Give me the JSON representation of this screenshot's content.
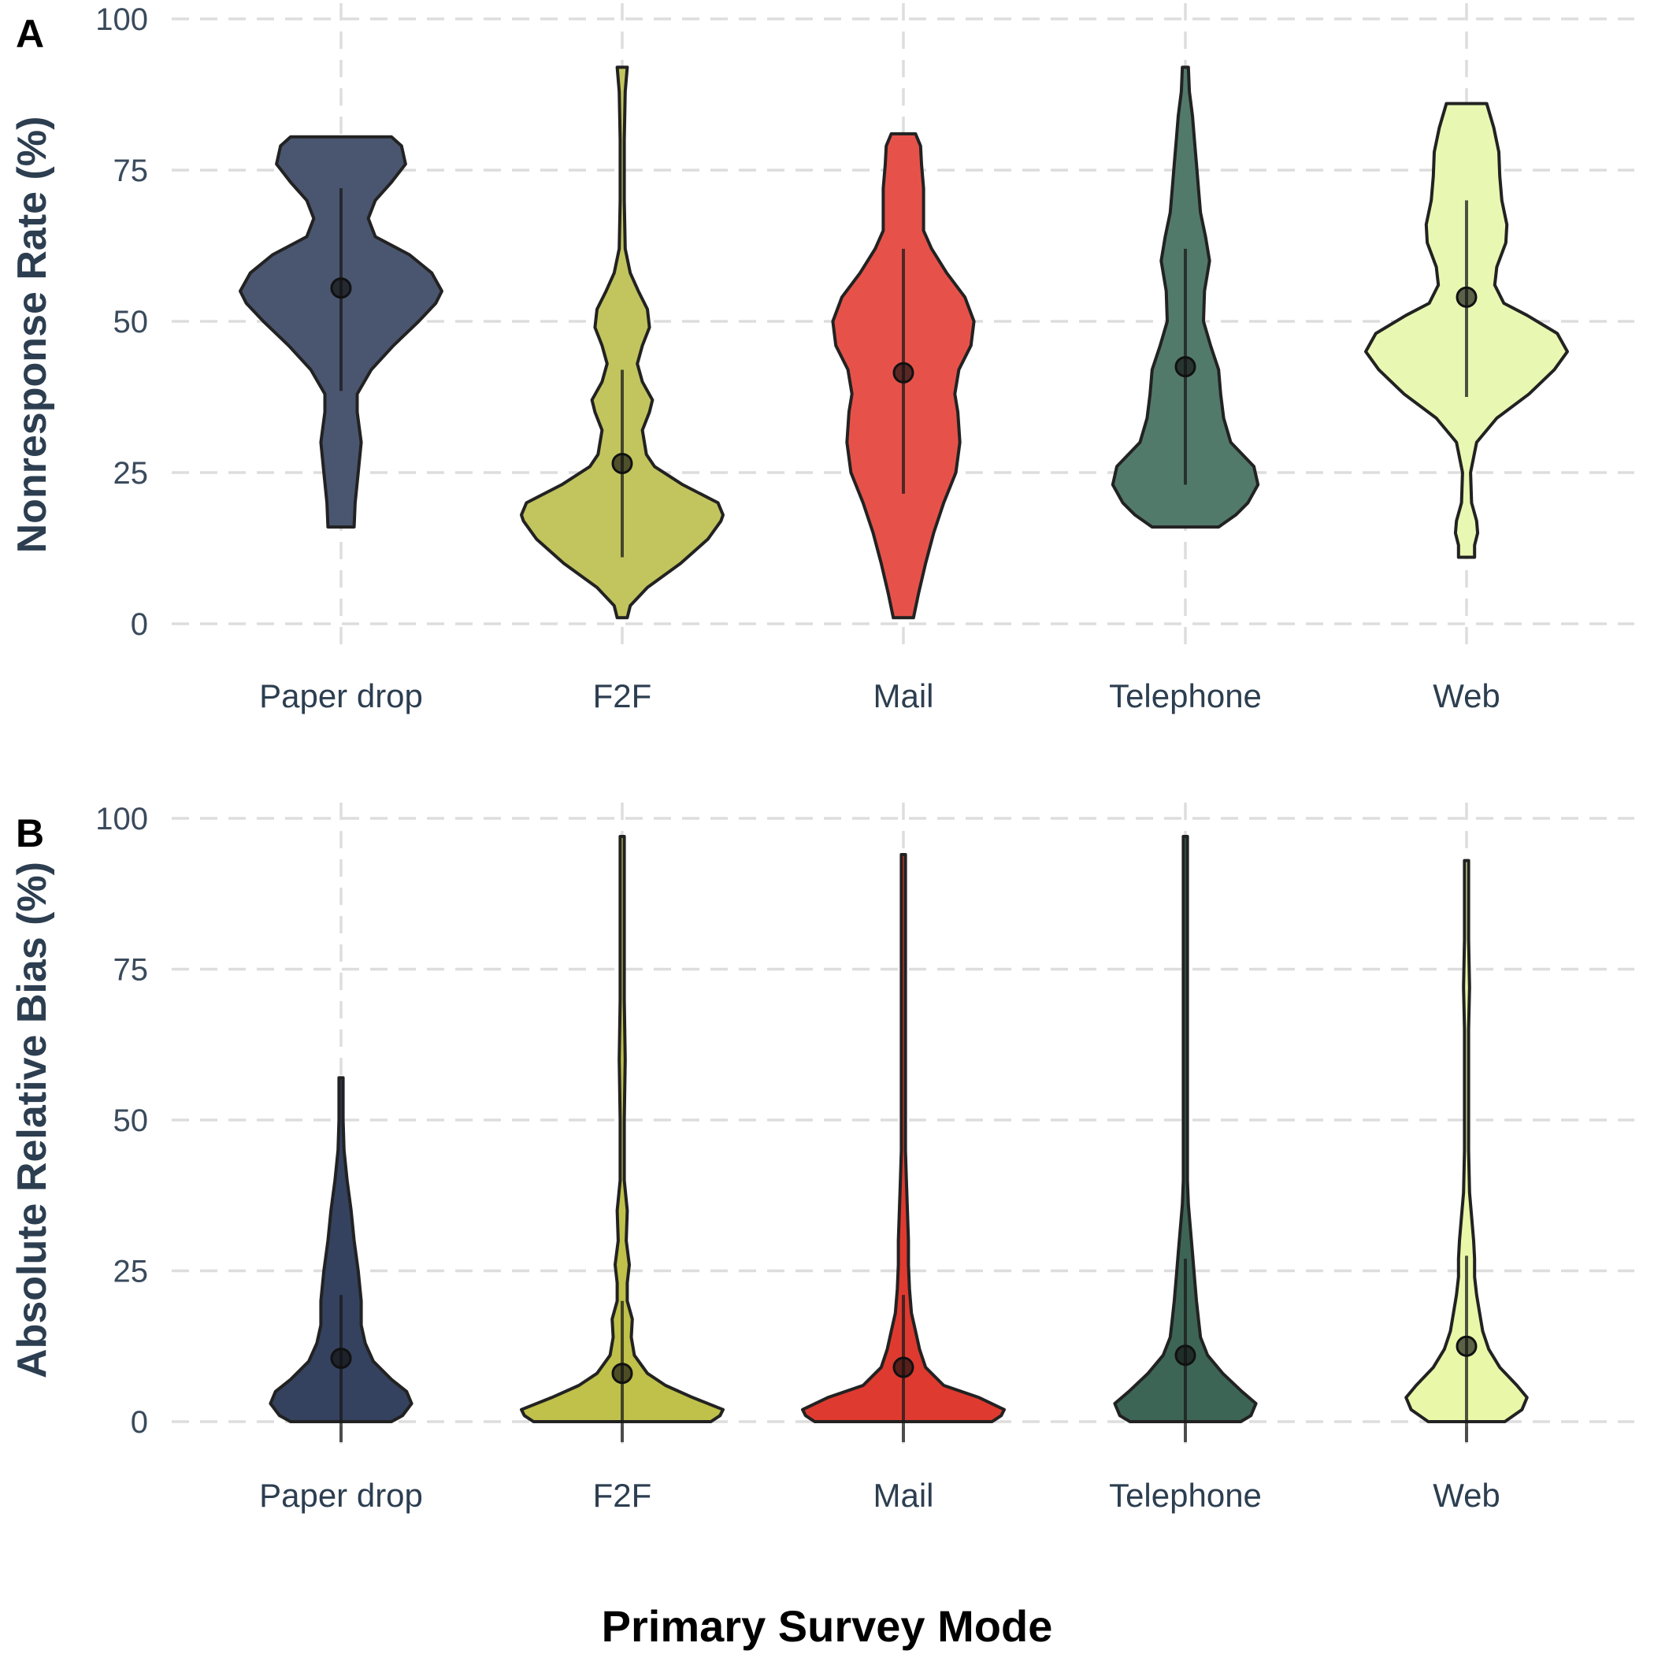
{
  "figure": {
    "xlabel": "Primary Survey Mode"
  },
  "chart_data": [
    {
      "type": "violin",
      "panel_label": "A",
      "ylabel": "Nonresponse Rate (%)",
      "ylim": [
        0,
        100
      ],
      "yticks": [
        0,
        25,
        50,
        75,
        100
      ],
      "categories": [
        "Paper drop",
        "F2F",
        "Mail",
        "Telephone",
        "Web"
      ],
      "colors": [
        "#4a5670",
        "#c2c55e",
        "#e6524a",
        "#527a6b",
        "#e8f8b2"
      ],
      "grid": true,
      "series": [
        {
          "category": "Paper drop",
          "median": 55.5,
          "q_low": 38.5,
          "q_high": 72,
          "min": 16,
          "max": 80.5,
          "profile": [
            [
              16,
              0.13
            ],
            [
              20,
              0.14
            ],
            [
              25,
              0.17
            ],
            [
              30,
              0.2
            ],
            [
              35,
              0.16
            ],
            [
              38,
              0.16
            ],
            [
              42,
              0.3
            ],
            [
              46,
              0.52
            ],
            [
              50,
              0.77
            ],
            [
              53,
              0.94
            ],
            [
              55,
              1.0
            ],
            [
              58,
              0.9
            ],
            [
              61,
              0.68
            ],
            [
              64,
              0.34
            ],
            [
              67,
              0.27
            ],
            [
              70,
              0.34
            ],
            [
              73,
              0.5
            ],
            [
              76,
              0.64
            ],
            [
              79,
              0.6
            ],
            [
              80.5,
              0.5
            ]
          ]
        },
        {
          "category": "F2F",
          "median": 26.5,
          "q_low": 11,
          "q_high": 42,
          "min": 1,
          "max": 92,
          "profile": [
            [
              1,
              0.05
            ],
            [
              3,
              0.08
            ],
            [
              6,
              0.25
            ],
            [
              10,
              0.58
            ],
            [
              14,
              0.85
            ],
            [
              17,
              0.98
            ],
            [
              18,
              1.0
            ],
            [
              20,
              0.95
            ],
            [
              23,
              0.6
            ],
            [
              26,
              0.32
            ],
            [
              28,
              0.24
            ],
            [
              32,
              0.2
            ],
            [
              35,
              0.27
            ],
            [
              37,
              0.3
            ],
            [
              40,
              0.2
            ],
            [
              43,
              0.15
            ],
            [
              46,
              0.2
            ],
            [
              49,
              0.27
            ],
            [
              52,
              0.25
            ],
            [
              55,
              0.16
            ],
            [
              58,
              0.08
            ],
            [
              62,
              0.03
            ],
            [
              70,
              0.02
            ],
            [
              80,
              0.02
            ],
            [
              88,
              0.03
            ],
            [
              92,
              0.05
            ]
          ]
        },
        {
          "category": "Mail",
          "median": 41.5,
          "q_low": 21.5,
          "q_high": 62,
          "min": 1,
          "max": 81,
          "profile": [
            [
              1,
              0.1
            ],
            [
              5,
              0.15
            ],
            [
              10,
              0.22
            ],
            [
              15,
              0.3
            ],
            [
              20,
              0.4
            ],
            [
              25,
              0.52
            ],
            [
              30,
              0.56
            ],
            [
              35,
              0.54
            ],
            [
              38,
              0.51
            ],
            [
              42,
              0.55
            ],
            [
              46,
              0.67
            ],
            [
              50,
              0.7
            ],
            [
              54,
              0.61
            ],
            [
              58,
              0.43
            ],
            [
              62,
              0.28
            ],
            [
              65,
              0.2
            ],
            [
              68,
              0.2
            ],
            [
              72,
              0.2
            ],
            [
              76,
              0.18
            ],
            [
              79,
              0.17
            ],
            [
              81,
              0.12
            ]
          ]
        },
        {
          "category": "Telephone",
          "median": 42.5,
          "q_low": 23,
          "q_high": 62,
          "min": 16,
          "max": 92,
          "profile": [
            [
              16,
              0.33
            ],
            [
              18,
              0.5
            ],
            [
              20,
              0.62
            ],
            [
              23,
              0.72
            ],
            [
              26,
              0.68
            ],
            [
              30,
              0.45
            ],
            [
              34,
              0.38
            ],
            [
              38,
              0.35
            ],
            [
              42,
              0.33
            ],
            [
              46,
              0.25
            ],
            [
              50,
              0.18
            ],
            [
              55,
              0.19
            ],
            [
              60,
              0.24
            ],
            [
              64,
              0.2
            ],
            [
              68,
              0.15
            ],
            [
              72,
              0.13
            ],
            [
              76,
              0.11
            ],
            [
              80,
              0.09
            ],
            [
              84,
              0.07
            ],
            [
              88,
              0.04
            ],
            [
              92,
              0.03
            ]
          ]
        },
        {
          "category": "Web",
          "median": 54,
          "q_low": 37.5,
          "q_high": 70,
          "min": 11,
          "max": 86,
          "profile": [
            [
              11,
              0.08
            ],
            [
              13,
              0.08
            ],
            [
              15,
              0.11
            ],
            [
              17,
              0.1
            ],
            [
              20,
              0.05
            ],
            [
              25,
              0.04
            ],
            [
              30,
              0.1
            ],
            [
              34,
              0.3
            ],
            [
              38,
              0.62
            ],
            [
              42,
              0.87
            ],
            [
              45,
              1.0
            ],
            [
              48,
              0.9
            ],
            [
              51,
              0.6
            ],
            [
              53,
              0.37
            ],
            [
              56,
              0.28
            ],
            [
              59,
              0.3
            ],
            [
              63,
              0.39
            ],
            [
              66,
              0.4
            ],
            [
              70,
              0.35
            ],
            [
              74,
              0.33
            ],
            [
              78,
              0.32
            ],
            [
              82,
              0.27
            ],
            [
              86,
              0.2
            ]
          ]
        }
      ]
    },
    {
      "type": "violin",
      "panel_label": "B",
      "ylabel": "Absolute Relative Bias (%)",
      "ylim": [
        0,
        100
      ],
      "yticks": [
        0,
        25,
        50,
        75,
        100
      ],
      "categories": [
        "Paper drop",
        "F2F",
        "Mail",
        "Telephone",
        "Web"
      ],
      "colors": [
        "#34425f",
        "#bfc14a",
        "#df3a30",
        "#3d6556",
        "#e8f8a8"
      ],
      "grid": true,
      "series": [
        {
          "category": "Paper drop",
          "median": 10.5,
          "q_low": 0,
          "q_high": 21,
          "min": 0,
          "max": 57,
          "profile": [
            [
              0,
              0.5
            ],
            [
              1,
              0.61
            ],
            [
              3,
              0.7
            ],
            [
              5,
              0.65
            ],
            [
              7,
              0.5
            ],
            [
              10,
              0.32
            ],
            [
              13,
              0.24
            ],
            [
              16,
              0.2
            ],
            [
              20,
              0.2
            ],
            [
              25,
              0.17
            ],
            [
              30,
              0.13
            ],
            [
              35,
              0.1
            ],
            [
              40,
              0.06
            ],
            [
              45,
              0.03
            ],
            [
              50,
              0.02
            ],
            [
              57,
              0.02
            ]
          ]
        },
        {
          "category": "F2F",
          "median": 8,
          "q_low": 0,
          "q_high": 20,
          "min": 0,
          "max": 97,
          "profile": [
            [
              0,
              0.88
            ],
            [
              1,
              0.97
            ],
            [
              2,
              1.0
            ],
            [
              4,
              0.7
            ],
            [
              6,
              0.43
            ],
            [
              8,
              0.25
            ],
            [
              11,
              0.12
            ],
            [
              14,
              0.09
            ],
            [
              17,
              0.1
            ],
            [
              20,
              0.05
            ],
            [
              23,
              0.05
            ],
            [
              26,
              0.07
            ],
            [
              30,
              0.04
            ],
            [
              35,
              0.05
            ],
            [
              40,
              0.02
            ],
            [
              50,
              0.02
            ],
            [
              60,
              0.03
            ],
            [
              70,
              0.02
            ],
            [
              80,
              0.02
            ],
            [
              90,
              0.02
            ],
            [
              97,
              0.02
            ]
          ]
        },
        {
          "category": "Mail",
          "median": 9,
          "q_low": 0,
          "q_high": 21,
          "min": 0,
          "max": 94,
          "profile": [
            [
              0,
              0.88
            ],
            [
              1,
              0.97
            ],
            [
              2,
              1.0
            ],
            [
              4,
              0.75
            ],
            [
              6,
              0.4
            ],
            [
              9,
              0.22
            ],
            [
              12,
              0.16
            ],
            [
              15,
              0.12
            ],
            [
              18,
              0.08
            ],
            [
              22,
              0.06
            ],
            [
              26,
              0.05
            ],
            [
              30,
              0.05
            ],
            [
              35,
              0.04
            ],
            [
              40,
              0.03
            ],
            [
              45,
              0.02
            ],
            [
              55,
              0.02
            ],
            [
              65,
              0.02
            ],
            [
              80,
              0.02
            ],
            [
              94,
              0.02
            ]
          ]
        },
        {
          "category": "Telephone",
          "median": 11,
          "q_low": 0,
          "q_high": 27,
          "min": 0,
          "max": 97,
          "profile": [
            [
              0,
              0.55
            ],
            [
              1,
              0.65
            ],
            [
              3,
              0.7
            ],
            [
              5,
              0.56
            ],
            [
              8,
              0.37
            ],
            [
              11,
              0.22
            ],
            [
              14,
              0.15
            ],
            [
              17,
              0.13
            ],
            [
              20,
              0.11
            ],
            [
              24,
              0.09
            ],
            [
              28,
              0.07
            ],
            [
              32,
              0.05
            ],
            [
              36,
              0.03
            ],
            [
              40,
              0.02
            ],
            [
              50,
              0.02
            ],
            [
              60,
              0.02
            ],
            [
              70,
              0.02
            ],
            [
              85,
              0.02
            ],
            [
              97,
              0.02
            ]
          ]
        },
        {
          "category": "Web",
          "median": 12.5,
          "q_low": 0,
          "q_high": 27.5,
          "min": 0,
          "max": 93,
          "profile": [
            [
              0,
              0.38
            ],
            [
              2,
              0.55
            ],
            [
              4,
              0.6
            ],
            [
              6,
              0.5
            ],
            [
              9,
              0.33
            ],
            [
              12,
              0.22
            ],
            [
              15,
              0.16
            ],
            [
              18,
              0.13
            ],
            [
              21,
              0.1
            ],
            [
              24,
              0.08
            ],
            [
              27,
              0.08
            ],
            [
              30,
              0.07
            ],
            [
              34,
              0.05
            ],
            [
              38,
              0.03
            ],
            [
              45,
              0.02
            ],
            [
              55,
              0.02
            ],
            [
              65,
              0.02
            ],
            [
              72,
              0.03
            ],
            [
              80,
              0.02
            ],
            [
              93,
              0.02
            ]
          ]
        }
      ]
    }
  ]
}
